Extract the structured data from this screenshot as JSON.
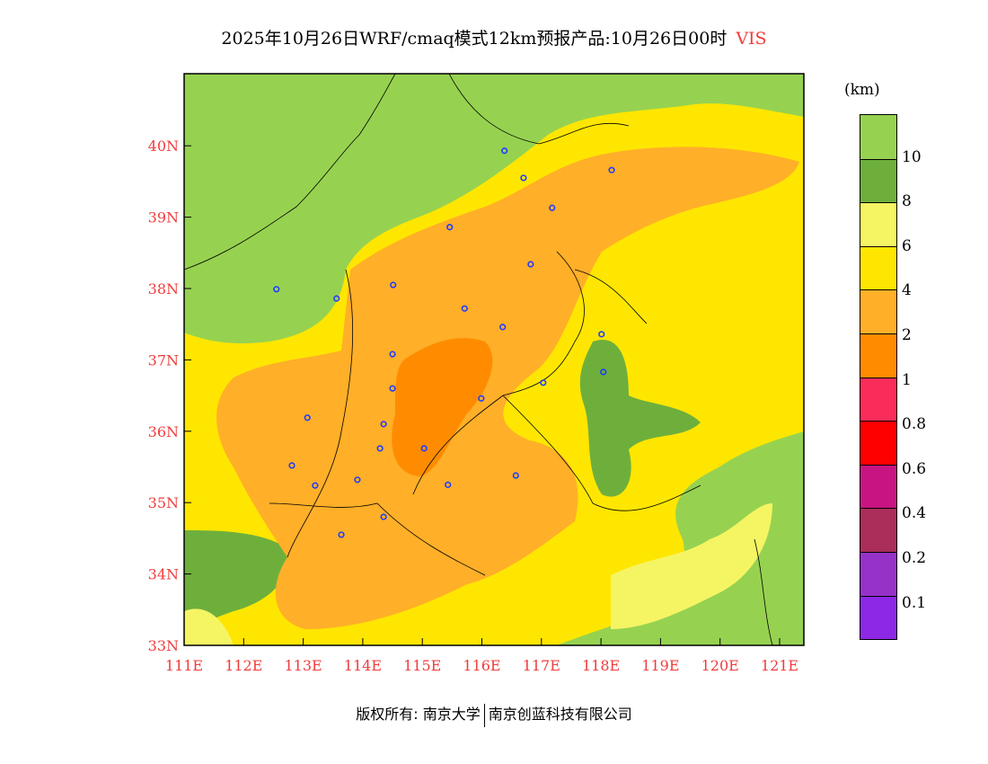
{
  "title": {
    "text": "2025年10月26日WRF/cmaq模式12km预报产品:10月26日00时",
    "variable": "VIS"
  },
  "colorbar": {
    "unit": "(km)",
    "colors": [
      "#96d250",
      "#6eaf3c",
      "#f5f564",
      "#ffe600",
      "#ffaf28",
      "#ff8c00",
      "#fa2d5a",
      "#ff0000",
      "#c81482",
      "#aa2d5a",
      "#9632c8",
      "#8c28e6"
    ],
    "labels": [
      "10",
      "8",
      "6",
      "4",
      "2",
      "1",
      "0.8",
      "0.6",
      "0.4",
      "0.2",
      "0.1"
    ]
  },
  "axes": {
    "lat_labels": [
      "40N",
      "39N",
      "38N",
      "37N",
      "36N",
      "35N",
      "34N",
      "33N"
    ],
    "lon_labels": [
      "111E",
      "112E",
      "113E",
      "114E",
      "115E",
      "116E",
      "117E",
      "118E",
      "119E",
      "120E",
      "121E"
    ]
  },
  "stations": [
    [
      116.38,
      39.93
    ],
    [
      116.7,
      39.55
    ],
    [
      118.18,
      39.66
    ],
    [
      117.18,
      39.13
    ],
    [
      115.46,
      38.86
    ],
    [
      116.82,
      38.34
    ],
    [
      114.51,
      38.05
    ],
    [
      112.55,
      37.99
    ],
    [
      113.56,
      37.86
    ],
    [
      115.71,
      37.72
    ],
    [
      116.35,
      37.46
    ],
    [
      118.01,
      37.36
    ],
    [
      114.5,
      37.08
    ],
    [
      118.04,
      36.83
    ],
    [
      117.03,
      36.68
    ],
    [
      114.5,
      36.6
    ],
    [
      115.99,
      36.46
    ],
    [
      113.07,
      36.19
    ],
    [
      114.35,
      36.1
    ],
    [
      115.03,
      35.76
    ],
    [
      114.29,
      35.76
    ],
    [
      112.81,
      35.52
    ],
    [
      116.57,
      35.38
    ],
    [
      113.91,
      35.32
    ],
    [
      113.2,
      35.24
    ],
    [
      115.43,
      35.25
    ],
    [
      114.35,
      34.8
    ],
    [
      113.64,
      34.55
    ]
  ],
  "footer": {
    "left": "版权所有: 南京大学",
    "right": "南京创蓝科技有限公司"
  }
}
